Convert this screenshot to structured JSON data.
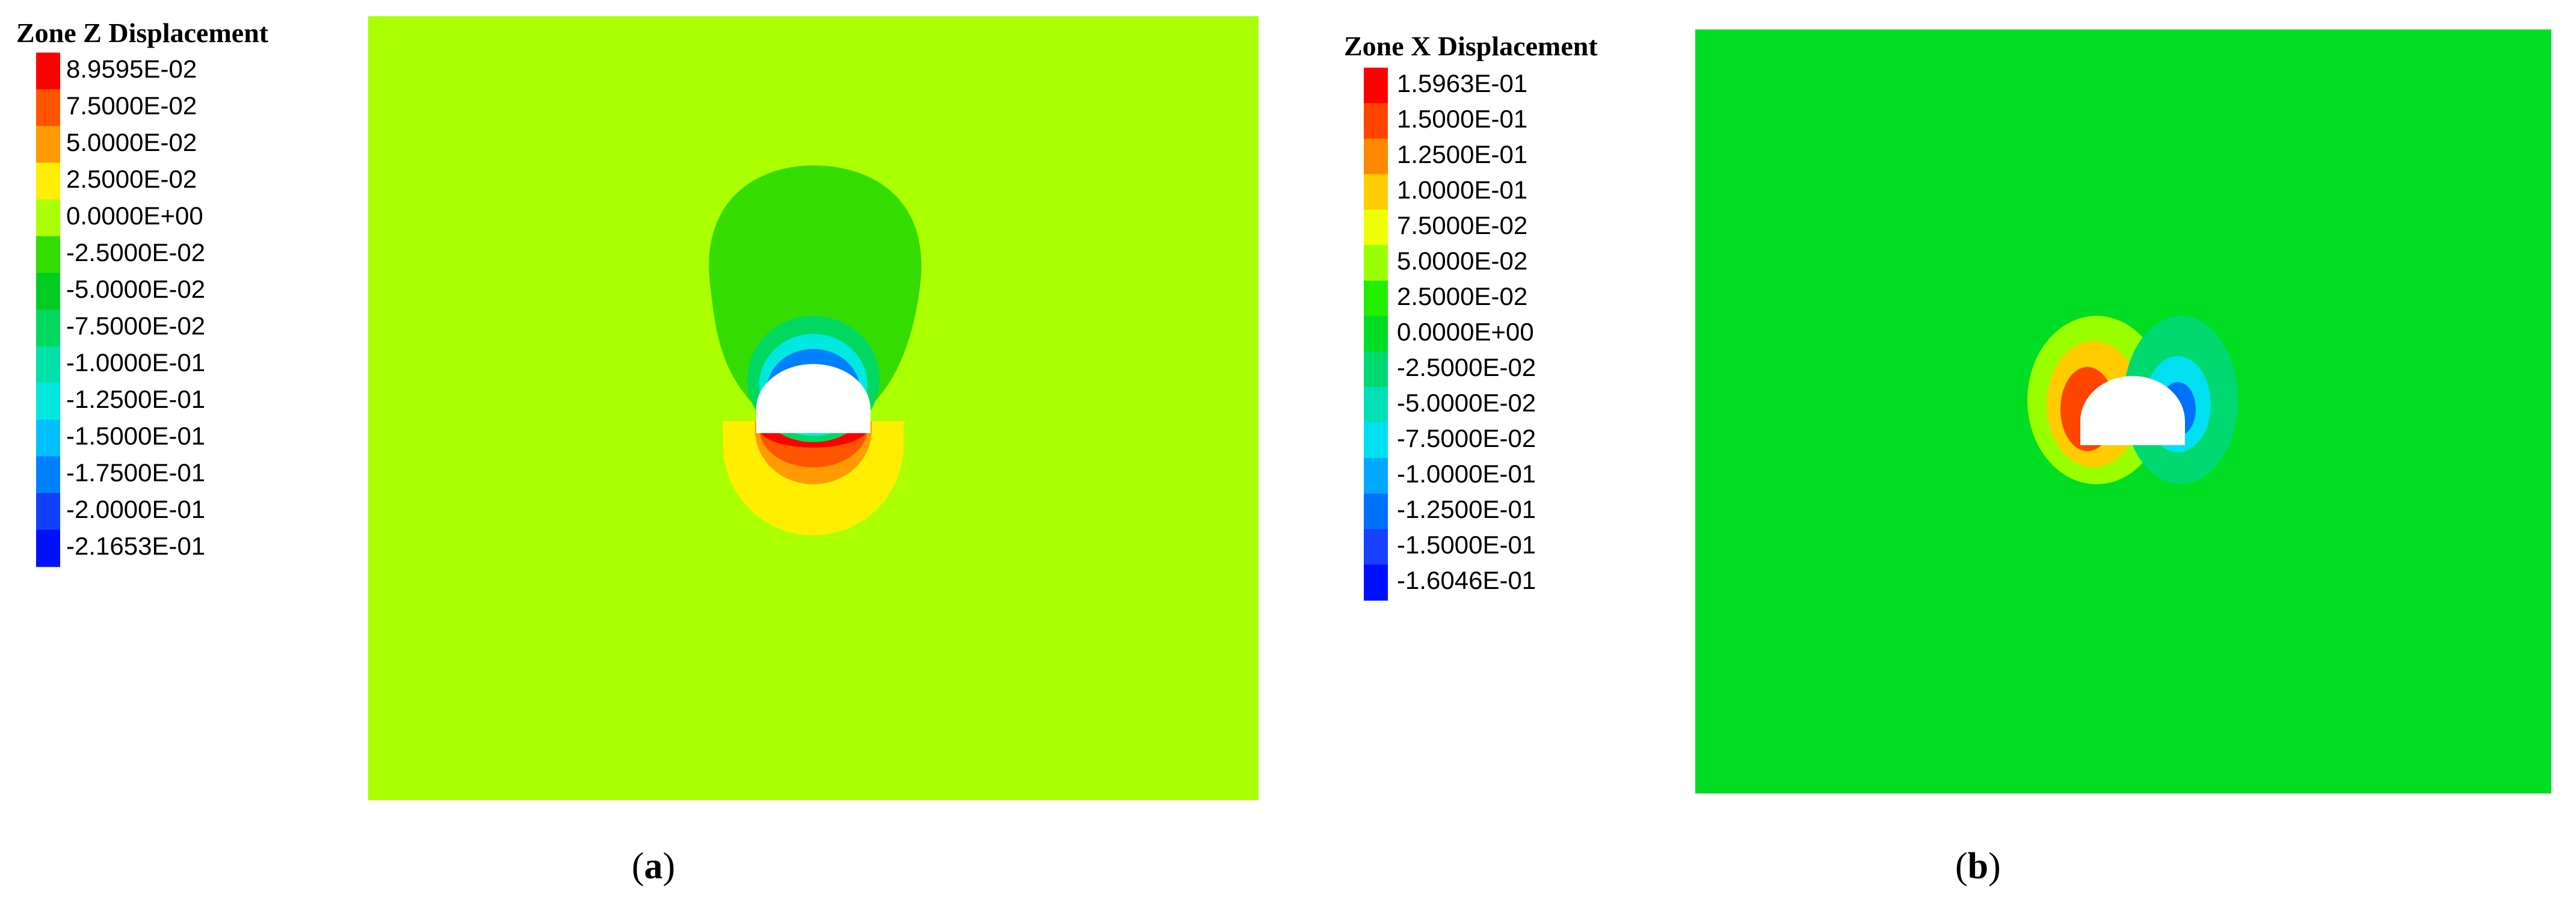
{
  "panels": [
    {
      "legend": {
        "title": "Zone Z Displacement",
        "entries": [
          {
            "label": "8.9595E-02",
            "color": "#ff0000"
          },
          {
            "label": "7.5000E-02",
            "color": "#ff5500"
          },
          {
            "label": "5.0000E-02",
            "color": "#ff9a00"
          },
          {
            "label": "2.5000E-02",
            "color": "#ffee00"
          },
          {
            "label": "0.0000E+00",
            "color": "#aaff00"
          },
          {
            "label": "-2.5000E-02",
            "color": "#33dd00"
          },
          {
            "label": "-5.0000E-02",
            "color": "#00cc22"
          },
          {
            "label": "-7.5000E-02",
            "color": "#00d860"
          },
          {
            "label": "-1.0000E-01",
            "color": "#00e0a8"
          },
          {
            "label": "-1.2500E-01",
            "color": "#00e8e0"
          },
          {
            "label": "-1.5000E-01",
            "color": "#00c0ff"
          },
          {
            "label": "-1.7500E-01",
            "color": "#0080ff"
          },
          {
            "label": "-2.0000E-01",
            "color": "#1040ff"
          },
          {
            "label": "-2.1653E-01",
            "color": "#0010ff"
          }
        ]
      },
      "caption": [
        "(",
        "a",
        ")"
      ]
    },
    {
      "legend": {
        "title": "Zone X Displacement",
        "entries": [
          {
            "label": "1.5963E-01",
            "color": "#ff0000"
          },
          {
            "label": "1.5000E-01",
            "color": "#ff4400"
          },
          {
            "label": "1.2500E-01",
            "color": "#ff8800"
          },
          {
            "label": "1.0000E-01",
            "color": "#ffcc00"
          },
          {
            "label": "7.5000E-02",
            "color": "#eeff00"
          },
          {
            "label": "5.0000E-02",
            "color": "#99ff00"
          },
          {
            "label": "2.5000E-02",
            "color": "#22ee00"
          },
          {
            "label": "0.0000E+00",
            "color": "#00dd22"
          },
          {
            "label": "-2.5000E-02",
            "color": "#00d870"
          },
          {
            "label": "-5.0000E-02",
            "color": "#00e0b8"
          },
          {
            "label": "-7.5000E-02",
            "color": "#00e0f0"
          },
          {
            "label": "-1.0000E-01",
            "color": "#00a8ff"
          },
          {
            "label": "-1.2500E-01",
            "color": "#0070ff"
          },
          {
            "label": "-1.5000E-01",
            "color": "#1840ff"
          },
          {
            "label": "-1.6046E-01",
            "color": "#0010ff"
          }
        ]
      },
      "caption": [
        "(",
        "b",
        ")"
      ]
    }
  ]
}
